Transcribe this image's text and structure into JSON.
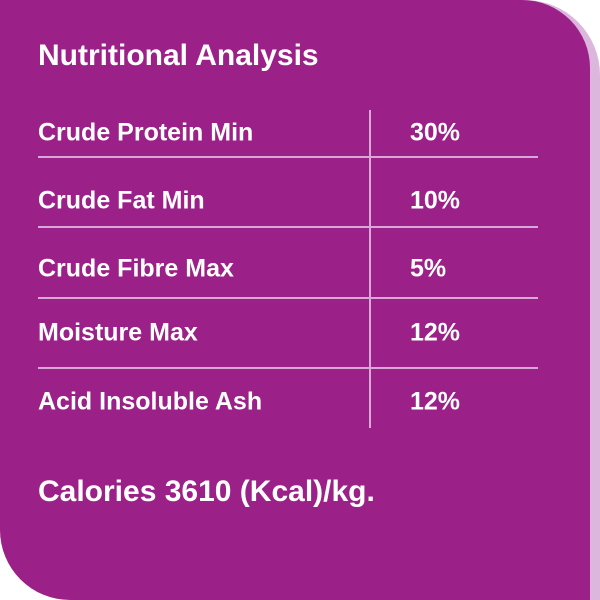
{
  "header": {
    "title": "Nutritional Analysis"
  },
  "table": {
    "rows": [
      [
        "Crude Protein Min",
        "30%"
      ],
      [
        "Crude Fat Min",
        "10%"
      ],
      [
        "Crude Fibre Max",
        "5%"
      ],
      [
        "Moisture Max",
        "12%"
      ],
      [
        "Acid Insoluble Ash",
        "12%"
      ]
    ]
  },
  "footer": {
    "text": "Calories 3610 (Kcal)/kg."
  }
}
